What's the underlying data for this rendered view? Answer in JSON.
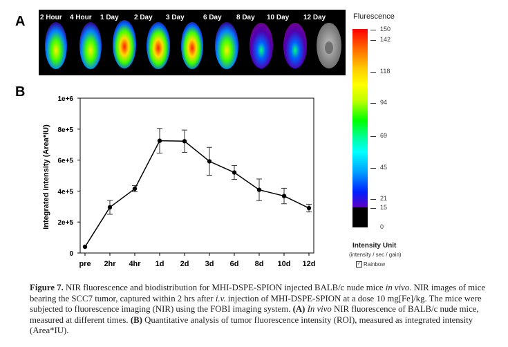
{
  "panel_a": {
    "letter": "A",
    "time_labels": [
      "2 Hour",
      "4 Hour",
      "1 Day",
      "2 Day",
      "3 Day",
      "6 Day",
      "8 Day",
      "10 Day",
      "12 Day"
    ],
    "scale_title": "Flurescence",
    "scale_ticks": [
      "150",
      "142",
      "118",
      "94",
      "69",
      "45",
      "21",
      "15",
      "0"
    ],
    "unit_title": "Intensity Unit",
    "unit_sub": "(intensity / sec / gain)",
    "rainbow_label": "Rainbow",
    "rainbow_check": "✓"
  },
  "panel_b": {
    "letter": "B"
  },
  "chart_data": {
    "type": "line",
    "categories": [
      "pre",
      "2hr",
      "4hr",
      "1d",
      "2d",
      "3d",
      "6d",
      "8d",
      "10d",
      "12d"
    ],
    "values": [
      40000,
      295000,
      415000,
      725000,
      722000,
      592000,
      520000,
      408000,
      368000,
      290000
    ],
    "errors": [
      0,
      45000,
      20000,
      80000,
      72000,
      90000,
      45000,
      70000,
      50000,
      25000
    ],
    "ylabel": "Integrated intensity (Area*IU)",
    "xlabel": "",
    "ylim": [
      0,
      1000000
    ],
    "yticks": [
      "0",
      "2e+5",
      "4e+5",
      "6e+5",
      "8e+5",
      "1e+6"
    ]
  },
  "caption": {
    "label": "Figure 7.",
    "line1": "NIR fluorescence and biodistribution for MHI-DSPE-SPION injected BALB/c nude mice ",
    "in_vivo_1": "in vivo",
    "line1_end": ".",
    "line2a": "NIR images of mice bearing the SCC7 tumor, captured within 2 hrs after ",
    "iv": "i.v.",
    "line2b": " injection of MHI-DSPE-SPION at a dose 10 mg[Fe]/kg. The mice were subjected to fluorescence imaging (NIR) using the FOBI imaging system. ",
    "a_ref": "(A)",
    "in_vivo_2": "In vivo",
    "line3": " NIR fluorescence of BALB/c nude mice, measured at different times. ",
    "b_ref": "(B)",
    "line4": " Quantitative analysis of tumor fluorescence intensity (ROI), measured as integrated intensity (Area*IU)."
  }
}
